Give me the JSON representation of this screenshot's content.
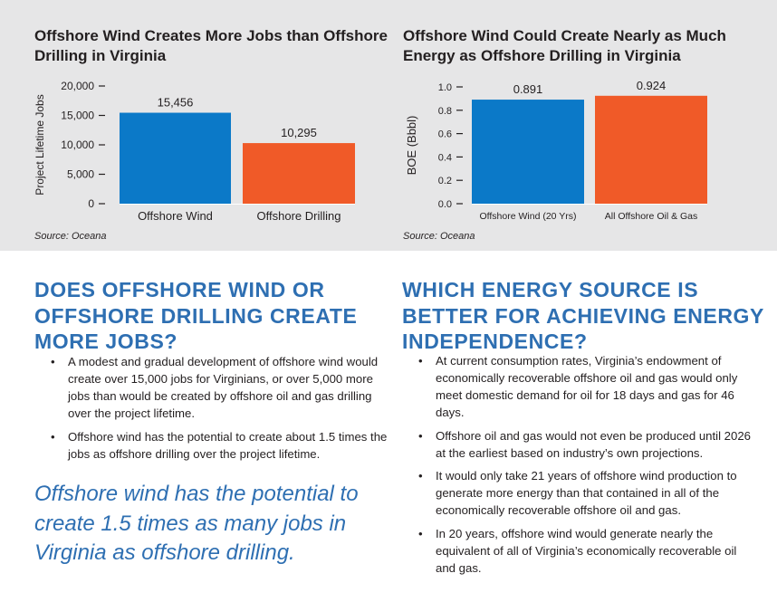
{
  "colors": {
    "band_background": "#e6e6e7",
    "wind_blue": "#0b79c8",
    "drilling_orange": "#f05a28",
    "heading_blue": "#2e6fb2",
    "text": "#231f20"
  },
  "chart_data": [
    {
      "type": "bar",
      "title": "Offshore Wind Creates More Jobs than Offshore Drilling in Virginia",
      "ylabel": "Project Lifetime Jobs",
      "xlabel": "",
      "categories": [
        "Offshore Wind",
        "Offshore Drilling"
      ],
      "values": [
        15456,
        10295
      ],
      "value_labels": [
        "15,456",
        "10,295"
      ],
      "bar_colors": [
        "#0b79c8",
        "#f05a28"
      ],
      "ylim": [
        0,
        20000
      ],
      "yticks": [
        0,
        5000,
        10000,
        15000,
        20000
      ],
      "ytick_labels": [
        "0",
        "5,000",
        "10,000",
        "15,000",
        "20,000"
      ],
      "grid": false,
      "source": "Source: Oceana"
    },
    {
      "type": "bar",
      "title": "Offshore Wind Could Create Nearly as Much Energy as Offshore Drilling in Virginia",
      "ylabel": "BOE (Bbbl)",
      "xlabel": "",
      "categories": [
        "Offshore Wind (20 Yrs)",
        "All Offshore Oil & Gas"
      ],
      "values": [
        0.891,
        0.924
      ],
      "value_labels": [
        "0.891",
        "0.924"
      ],
      "bar_colors": [
        "#0b79c8",
        "#f05a28"
      ],
      "ylim": [
        0,
        1.0
      ],
      "yticks": [
        0,
        0.2,
        0.4,
        0.6,
        0.8,
        1.0
      ],
      "ytick_labels": [
        "0.0",
        "0.2",
        "0.4",
        "0.6",
        "0.8",
        "1.0"
      ],
      "grid": false,
      "source": "Source: Oceana"
    }
  ],
  "left_section": {
    "heading": "Does offshore wind or offshore drilling create more jobs?",
    "bullets": [
      "A modest and gradual development of offshore wind would create over 15,000 jobs for Virginians, or over 5,000 more jobs than would be created by offshore oil and gas drilling over the project lifetime.",
      "Offshore wind has the potential to create about 1.5 times the jobs as offshore drilling over the project lifetime."
    ],
    "quote": "Offshore wind has the potential to create 1.5 times as many jobs in Virginia as offshore drilling."
  },
  "right_section": {
    "heading": "Which energy source is better for achieving energy independence?",
    "bullets": [
      "At current consumption rates, Virginia’s endowment of economically recoverable offshore oil and gas would only meet domestic demand for oil for 18 days and gas for 46 days.",
      "Offshore oil and gas would not even be produced until 2026 at the earliest based on industry’s own projections.",
      "It would only take 21 years of offshore wind production to generate more energy than that contained in all of the economically recoverable offshore oil and gas.",
      "In 20 years, offshore wind would generate nearly the equivalent of all of Virginia’s economically recoverable oil and gas."
    ]
  },
  "bullet_glyph": "•"
}
